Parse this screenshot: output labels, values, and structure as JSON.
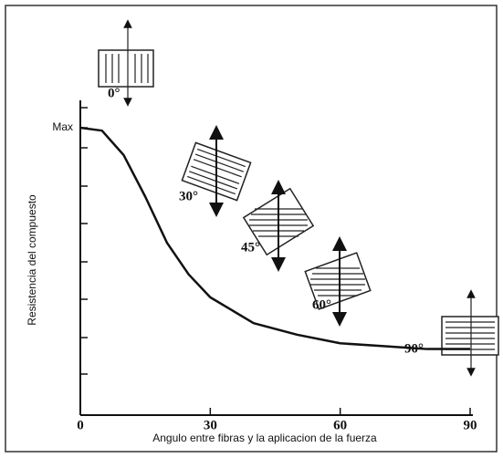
{
  "chart_data": {
    "type": "line",
    "x_label": "Angulo entre fibras y la aplicacion de la fuerza",
    "y_label": "Resistencia del compuesto",
    "x": [
      0,
      5,
      10,
      15,
      20,
      25,
      30,
      40,
      50,
      60,
      70,
      80,
      90
    ],
    "series": [
      {
        "color": "#111111",
        "values": [
          1.0,
          0.99,
          0.905,
          0.76,
          0.6,
          0.49,
          0.41,
          0.32,
          0.28,
          0.25,
          0.24,
          0.23,
          0.23
        ]
      }
    ],
    "xlim": [
      0,
      90
    ],
    "xticks": [
      0,
      30,
      60,
      90
    ],
    "ylim": [
      0,
      1.07
    ],
    "yticks": [
      {
        "value": 1,
        "label": "Max"
      }
    ],
    "annotations": [
      "0°",
      "30°",
      "45°",
      "60°",
      "90°"
    ]
  }
}
